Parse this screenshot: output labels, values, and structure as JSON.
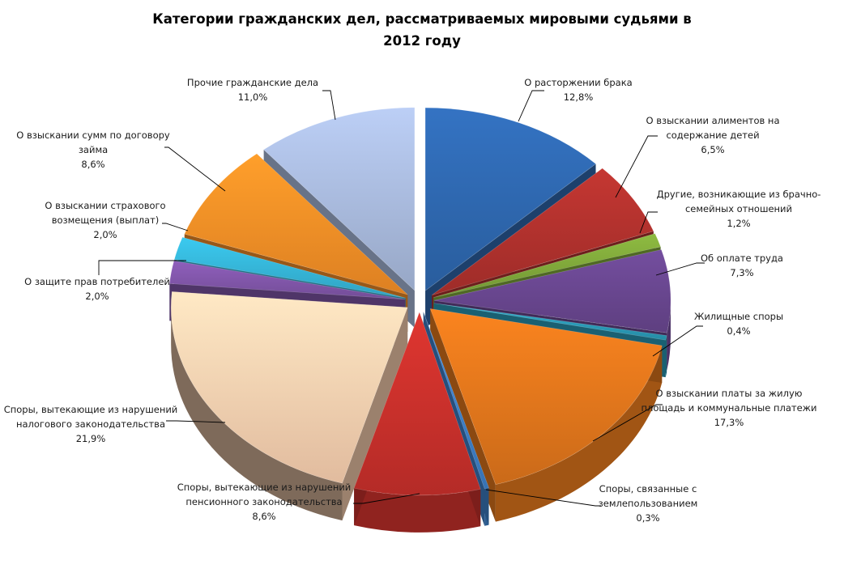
{
  "chart_data": {
    "type": "pie",
    "title": [
      "Категории гражданских дел, рассматриваемых мировыми судьями в",
      "2012 году"
    ],
    "legend": "none",
    "slices": [
      {
        "label": [
          "О расторжении брака"
        ],
        "value_label": "12,8%",
        "value": 12.8,
        "color": "#2E67AE"
      },
      {
        "label": [
          "О взыскании алиментов на",
          "содержание детей"
        ],
        "value_label": "6,5%",
        "value": 6.5,
        "color": "#B0312D"
      },
      {
        "label": [
          "Другие, возникающие из брачно-",
          "семейных отношений"
        ],
        "value_label": "1,2%",
        "value": 1.2,
        "color": "#7FA73A"
      },
      {
        "label": [
          "Об оплате труда"
        ],
        "value_label": "7,3%",
        "value": 7.3,
        "color": "#68468E"
      },
      {
        "label": [
          "Жилищные споры"
        ],
        "value_label": "0,4%",
        "value": 0.4,
        "color": "#2A9BB8"
      },
      {
        "label": [
          "О взыскании платы за жилую",
          "площадь и коммунальные платежи"
        ],
        "value_label": "17,3%",
        "value": 17.3,
        "color": "#E0761C"
      },
      {
        "label": [
          "Споры, связанные с",
          "землепользованием"
        ],
        "value_label": "0,3%",
        "value": 0.3,
        "color": "#3D80C8"
      },
      {
        "label": [
          "Споры, вытекающие из нарушений",
          "пенсионного законодательства"
        ],
        "value_label": "8,6%",
        "value": 8.6,
        "color": "#C8302B"
      },
      {
        "label": [
          "Споры, вытекающие из нарушений",
          "налогового законодательства"
        ],
        "value_label": "21,9%",
        "value": 21.9,
        "color": "#FAD0B0"
      },
      {
        "label": [
          "О защите прав потребителей"
        ],
        "value_label": "2,0%",
        "value": 2.0,
        "color": "#8055A8"
      },
      {
        "label": [
          "О взыскании страхового",
          "возмещения (выплат)"
        ],
        "value_label": "2,0%",
        "value": 2.0,
        "color": "#35B4D6"
      },
      {
        "label": [
          "О взыскании сумм по договору",
          "займа"
        ],
        "value_label": "8,6%",
        "value": 8.6,
        "color": "#F58E26"
      },
      {
        "label": [
          "Прочие гражданские дела"
        ],
        "value_label": "11,0%",
        "value": 11.0,
        "color": "#A8B9DC"
      }
    ]
  }
}
